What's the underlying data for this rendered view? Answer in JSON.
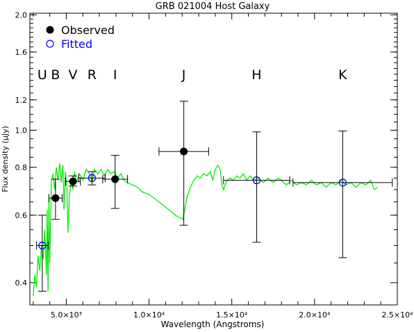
{
  "chart_data": {
    "type": "scatter",
    "title": "GRB 021004 Host Galaxy",
    "xlabel": "Wavelength (Angstroms)",
    "ylabel": "Flux density (μJy)",
    "xlim": [
      2800,
      25000
    ],
    "ylim": [
      0.35,
      2.02
    ],
    "yscale": "log",
    "x_ticks": [
      {
        "value": 5000,
        "label": "5.0×10³"
      },
      {
        "value": 10000,
        "label": "1.0×10⁴"
      },
      {
        "value": 15000,
        "label": "1.5×10⁴"
      },
      {
        "value": 20000,
        "label": "2.0×10⁴"
      },
      {
        "value": 25000,
        "label": "2.5×10⁴"
      }
    ],
    "x_minor_step": 1000,
    "y_ticks": [
      {
        "value": 0.4,
        "label": "0.4"
      },
      {
        "value": 0.6,
        "label": "0.6"
      },
      {
        "value": 0.8,
        "label": "0.8"
      },
      {
        "value": 1.0,
        "label": "1.0"
      },
      {
        "value": 1.2,
        "label": "1.2"
      },
      {
        "value": 1.6,
        "label": "1.6"
      },
      {
        "value": 2.0,
        "label": "2.0"
      }
    ],
    "legend": [
      {
        "label": "Observed",
        "marker": "filled-circle",
        "color": "#000000"
      },
      {
        "label": "Fitted",
        "marker": "open-circle",
        "color": "#0000ff"
      }
    ],
    "band_labels": [
      {
        "label": "U",
        "x": 3550
      },
      {
        "label": "B",
        "x": 4350
      },
      {
        "label": "V",
        "x": 5400
      },
      {
        "label": "R",
        "x": 6550
      },
      {
        "label": "I",
        "x": 7950
      },
      {
        "label": "J",
        "x": 12100
      },
      {
        "label": "H",
        "x": 16500
      },
      {
        "label": "K",
        "x": 21700
      }
    ],
    "band_label_y": 1.36,
    "observed": [
      {
        "x": 4350,
        "y": 0.665,
        "xerr": 400,
        "ylo": 0.585,
        "yhi": 0.745
      },
      {
        "x": 5400,
        "y": 0.735,
        "xerr": 450,
        "ylo": 0.715,
        "yhi": 0.76
      },
      {
        "x": 7950,
        "y": 0.745,
        "xerr": 750,
        "ylo": 0.625,
        "yhi": 0.86
      },
      {
        "x": 12100,
        "y": 0.88,
        "xerr": 1500,
        "ylo": 0.565,
        "yhi": 1.19
      }
    ],
    "fitted": [
      {
        "x": 3550,
        "y": 0.5,
        "xerr": 350,
        "ylo": 0.38,
        "yhi": 0.6
      },
      {
        "x": 6550,
        "y": 0.75,
        "xerr": 800,
        "ylo": 0.72,
        "yhi": 0.78
      },
      {
        "x": 16500,
        "y": 0.74,
        "xerr": 2000,
        "ylo": 0.51,
        "yhi": 0.99
      },
      {
        "x": 21700,
        "y": 0.73,
        "xerr": 3000,
        "ylo": 0.465,
        "yhi": 0.995
      }
    ],
    "model_sed": {
      "color": "#00ee00",
      "points": [
        [
          3000,
          0.37
        ],
        [
          3100,
          0.42
        ],
        [
          3200,
          0.39
        ],
        [
          3300,
          0.47
        ],
        [
          3400,
          0.43
        ],
        [
          3500,
          0.5
        ],
        [
          3600,
          0.46
        ],
        [
          3700,
          0.55
        ],
        [
          3800,
          0.42
        ],
        [
          3850,
          0.62
        ],
        [
          3900,
          0.38
        ],
        [
          3950,
          0.66
        ],
        [
          4000,
          0.45
        ],
        [
          4100,
          0.74
        ],
        [
          4200,
          0.77
        ],
        [
          4300,
          0.7
        ],
        [
          4400,
          0.8
        ],
        [
          4500,
          0.74
        ],
        [
          4600,
          0.82
        ],
        [
          4700,
          0.73
        ],
        [
          4800,
          0.81
        ],
        [
          4860,
          0.62
        ],
        [
          4950,
          0.78
        ],
        [
          5050,
          0.7
        ],
        [
          5100,
          0.54
        ],
        [
          5200,
          0.68
        ],
        [
          5300,
          0.74
        ],
        [
          5400,
          0.7
        ],
        [
          5500,
          0.78
        ],
        [
          5600,
          0.73
        ],
        [
          5800,
          0.77
        ],
        [
          6000,
          0.74
        ],
        [
          6200,
          0.79
        ],
        [
          6400,
          0.77
        ],
        [
          6563,
          0.73
        ],
        [
          6700,
          0.79
        ],
        [
          6900,
          0.77
        ],
        [
          7100,
          0.79
        ],
        [
          7300,
          0.76
        ],
        [
          7500,
          0.79
        ],
        [
          7700,
          0.77
        ],
        [
          7900,
          0.78
        ],
        [
          8100,
          0.75
        ],
        [
          8300,
          0.77
        ],
        [
          8500,
          0.74
        ],
        [
          8700,
          0.73
        ],
        [
          9000,
          0.72
        ],
        [
          9300,
          0.71
        ],
        [
          9600,
          0.69
        ],
        [
          10000,
          0.68
        ],
        [
          10400,
          0.66
        ],
        [
          10800,
          0.64
        ],
        [
          11200,
          0.62
        ],
        [
          11600,
          0.6
        ],
        [
          11900,
          0.59
        ],
        [
          12050,
          0.585
        ],
        [
          12150,
          0.62
        ],
        [
          12300,
          0.67
        ],
        [
          12500,
          0.71
        ],
        [
          12700,
          0.74
        ],
        [
          12900,
          0.76
        ],
        [
          13100,
          0.75
        ],
        [
          13300,
          0.77
        ],
        [
          13500,
          0.76
        ],
        [
          13700,
          0.78
        ],
        [
          13850,
          0.74
        ],
        [
          14000,
          0.79
        ],
        [
          14150,
          0.81
        ],
        [
          14300,
          0.79
        ],
        [
          14400,
          0.72
        ],
        [
          14500,
          0.7
        ],
        [
          14700,
          0.74
        ],
        [
          14900,
          0.75
        ],
        [
          15100,
          0.74
        ],
        [
          15300,
          0.76
        ],
        [
          15500,
          0.75
        ],
        [
          15700,
          0.77
        ],
        [
          15900,
          0.74
        ],
        [
          16100,
          0.76
        ],
        [
          16300,
          0.74
        ],
        [
          16600,
          0.75
        ],
        [
          16900,
          0.73
        ],
        [
          17200,
          0.75
        ],
        [
          17500,
          0.73
        ],
        [
          17800,
          0.75
        ],
        [
          18000,
          0.74
        ],
        [
          18300,
          0.72
        ],
        [
          18600,
          0.74
        ],
        [
          18900,
          0.72
        ],
        [
          19200,
          0.73
        ],
        [
          19500,
          0.72
        ],
        [
          19800,
          0.74
        ],
        [
          20100,
          0.72
        ],
        [
          20400,
          0.73
        ],
        [
          20700,
          0.71
        ],
        [
          21000,
          0.73
        ],
        [
          21300,
          0.72
        ],
        [
          21600,
          0.74
        ],
        [
          21900,
          0.72
        ],
        [
          22200,
          0.73
        ],
        [
          22500,
          0.71
        ],
        [
          22800,
          0.73
        ],
        [
          23100,
          0.72
        ],
        [
          23400,
          0.74
        ],
        [
          23600,
          0.7
        ],
        [
          23800,
          0.71
        ]
      ]
    }
  }
}
